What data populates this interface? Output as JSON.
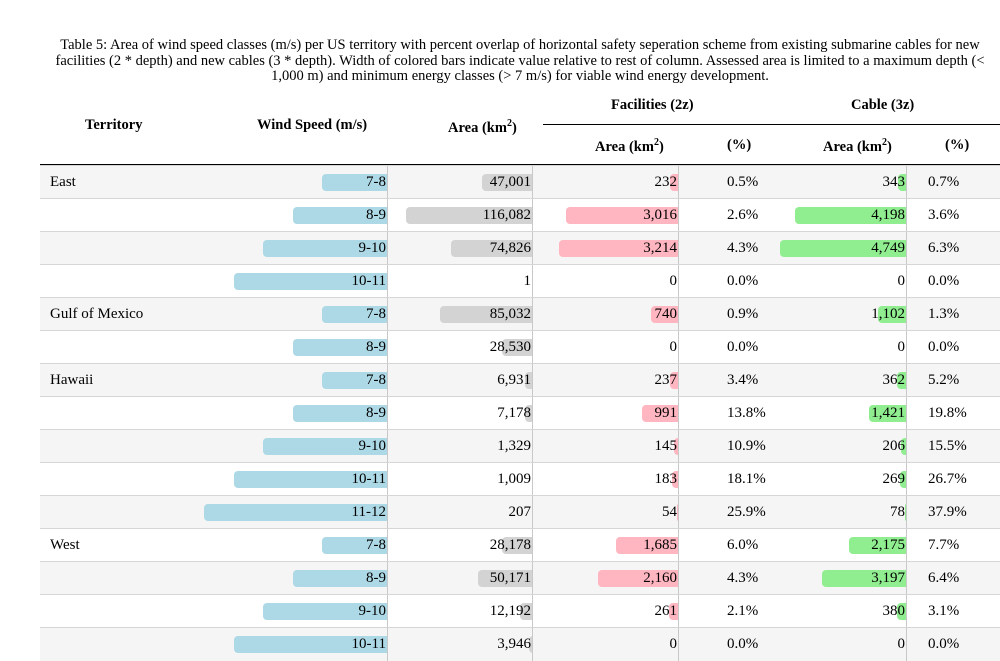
{
  "caption": "Table 5: Area of wind speed classes (m/s) per US territory with percent overlap of horizontal safety seperation scheme from existing submarine cables for new facilities (2 * depth) and new cables (3 * depth). Width of colored bars indicate value relative to rest of column. Assessed area is limited to a maximum depth (< 1,000 m) and minimum energy classes (> 7 m/s) for viable wind energy development.",
  "headers": {
    "territory": "Territory",
    "wind_speed": "Wind Speed (m/s)",
    "area": "Area (km",
    "area_sup": "2",
    "area_close": ")",
    "facilities_group": "Facilities (2z)",
    "cable_group": "Cable (3z)",
    "fac_area": "Area (km",
    "fac_area_sup": "2",
    "fac_area_close": ")",
    "fac_pct": "(%)",
    "cab_area": "Area (km",
    "cab_area_sup": "2",
    "cab_area_close": ")",
    "cab_pct": "(%)"
  },
  "colors": {
    "wind": "#add8e6",
    "area": "#d3d3d3",
    "facilities": "#ffb6c1",
    "cable": "#90ee90"
  },
  "rows": [
    {
      "territory": "East",
      "wind": "7-8",
      "area": "47,001",
      "fac_area": "232",
      "fac_pct": "0.5%",
      "cab_area": "343",
      "cab_pct": "0.7%"
    },
    {
      "territory": "",
      "wind": "8-9",
      "area": "116,082",
      "fac_area": "3,016",
      "fac_pct": "2.6%",
      "cab_area": "4,198",
      "cab_pct": "3.6%"
    },
    {
      "territory": "",
      "wind": "9-10",
      "area": "74,826",
      "fac_area": "3,214",
      "fac_pct": "4.3%",
      "cab_area": "4,749",
      "cab_pct": "6.3%"
    },
    {
      "territory": "",
      "wind": "10-11",
      "area": "1",
      "fac_area": "0",
      "fac_pct": "0.0%",
      "cab_area": "0",
      "cab_pct": "0.0%"
    },
    {
      "territory": "Gulf of Mexico",
      "wind": "7-8",
      "area": "85,032",
      "fac_area": "740",
      "fac_pct": "0.9%",
      "cab_area": "1,102",
      "cab_pct": "1.3%"
    },
    {
      "territory": "",
      "wind": "8-9",
      "area": "28,530",
      "fac_area": "0",
      "fac_pct": "0.0%",
      "cab_area": "0",
      "cab_pct": "0.0%"
    },
    {
      "territory": "Hawaii",
      "wind": "7-8",
      "area": "6,931",
      "fac_area": "237",
      "fac_pct": "3.4%",
      "cab_area": "362",
      "cab_pct": "5.2%"
    },
    {
      "territory": "",
      "wind": "8-9",
      "area": "7,178",
      "fac_area": "991",
      "fac_pct": "13.8%",
      "cab_area": "1,421",
      "cab_pct": "19.8%"
    },
    {
      "territory": "",
      "wind": "9-10",
      "area": "1,329",
      "fac_area": "145",
      "fac_pct": "10.9%",
      "cab_area": "206",
      "cab_pct": "15.5%"
    },
    {
      "territory": "",
      "wind": "10-11",
      "area": "1,009",
      "fac_area": "183",
      "fac_pct": "18.1%",
      "cab_area": "269",
      "cab_pct": "26.7%"
    },
    {
      "territory": "",
      "wind": "11-12",
      "area": "207",
      "fac_area": "54",
      "fac_pct": "25.9%",
      "cab_area": "78",
      "cab_pct": "37.9%"
    },
    {
      "territory": "West",
      "wind": "7-8",
      "area": "28,178",
      "fac_area": "1,685",
      "fac_pct": "6.0%",
      "cab_area": "2,175",
      "cab_pct": "7.7%"
    },
    {
      "territory": "",
      "wind": "8-9",
      "area": "50,171",
      "fac_area": "2,160",
      "fac_pct": "4.3%",
      "cab_area": "3,197",
      "cab_pct": "6.4%"
    },
    {
      "territory": "",
      "wind": "9-10",
      "area": "12,192",
      "fac_area": "261",
      "fac_pct": "2.1%",
      "cab_area": "380",
      "cab_pct": "3.1%"
    },
    {
      "territory": "",
      "wind": "10-11",
      "area": "3,946",
      "fac_area": "0",
      "fac_pct": "0.0%",
      "cab_area": "0",
      "cab_pct": "0.0%"
    }
  ]
}
